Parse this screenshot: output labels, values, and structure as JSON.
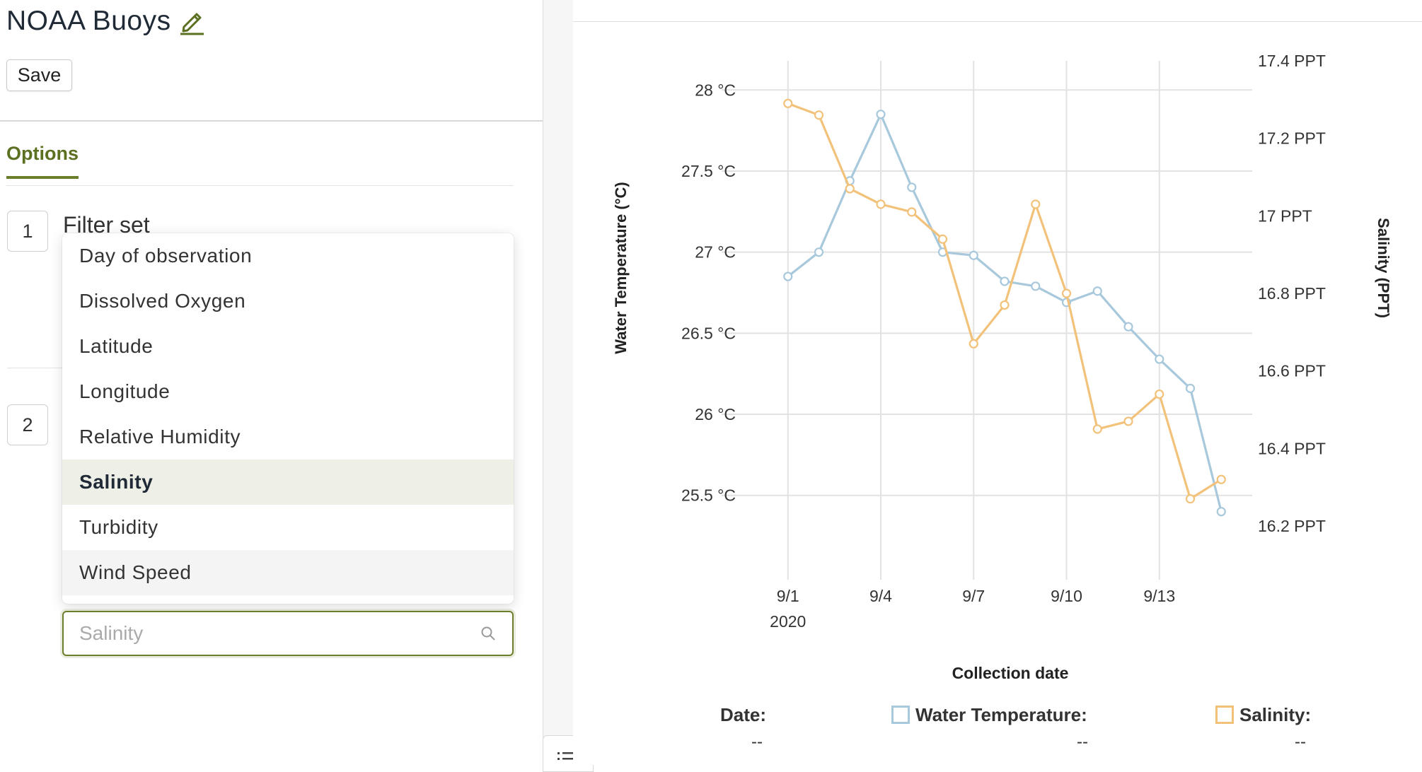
{
  "editor": {
    "title": "NOAA Buoys",
    "save_label": "Save",
    "tab_options_label": "Options",
    "steps": [
      {
        "number": "1",
        "title": "Filter set"
      },
      {
        "number": "2"
      }
    ],
    "dropdown_options": [
      "Day of observation",
      "Dissolved Oxygen",
      "Latitude",
      "Longitude",
      "Relative Humidity",
      "Salinity",
      "Turbidity",
      "Wind Speed"
    ],
    "selected_option": "Salinity",
    "hovered_option": "Wind Speed",
    "search_placeholder": "Salinity"
  },
  "colors": {
    "accent": "#6b7f2a",
    "water_temperature": "#a8c8dc",
    "salinity": "#f3c27a"
  },
  "chart_data": {
    "type": "line",
    "xlabel": "Collection date",
    "y_left_label": "Water Temperature (°C)",
    "y_right_label": "Salinity (PPT)",
    "x_ticks": [
      "9/1",
      "9/4",
      "9/7",
      "9/10",
      "9/13"
    ],
    "x_year_label": "2020",
    "x_domain": [
      "2020-08-31",
      "2020-09-16"
    ],
    "y_left_ticks": [
      "28 °C",
      "27.5 °C",
      "27 °C",
      "26.5 °C",
      "26 °C",
      "25.5 °C"
    ],
    "y_right_ticks": [
      "17.4 PPT",
      "17.2 PPT",
      "17 PPT",
      "16.8 PPT",
      "16.6 PPT",
      "16.4 PPT",
      "16.2 PPT"
    ],
    "y_left_range": [
      24.98,
      28.18
    ],
    "y_right_range": [
      16.2,
      17.4
    ],
    "grid": true,
    "series": [
      {
        "name": "Water Temperature",
        "axis": "left",
        "x": [
          "2020-09-01",
          "2020-09-02",
          "2020-09-03",
          "2020-09-04",
          "2020-09-05",
          "2020-09-06",
          "2020-09-07",
          "2020-09-08",
          "2020-09-09",
          "2020-09-10",
          "2020-09-11",
          "2020-09-12",
          "2020-09-13",
          "2020-09-14",
          "2020-09-15"
        ],
        "values": [
          26.85,
          27.0,
          27.44,
          27.85,
          27.4,
          27.0,
          26.98,
          26.82,
          26.79,
          26.69,
          26.76,
          26.54,
          26.34,
          26.16,
          25.4
        ]
      },
      {
        "name": "Salinity",
        "axis": "right",
        "x": [
          "2020-09-01",
          "2020-09-02",
          "2020-09-03",
          "2020-09-04",
          "2020-09-05",
          "2020-09-06",
          "2020-09-07",
          "2020-09-08",
          "2020-09-09",
          "2020-09-10",
          "2020-09-11",
          "2020-09-12",
          "2020-09-13",
          "2020-09-14",
          "2020-09-15"
        ],
        "values": [
          17.29,
          17.26,
          17.07,
          17.03,
          17.01,
          16.94,
          16.67,
          16.77,
          17.03,
          16.8,
          16.45,
          16.47,
          16.54,
          16.27,
          16.32
        ]
      }
    ],
    "readout": {
      "date_label": "Date:",
      "water_label": "Water Temperature:",
      "salinity_label": "Salinity:",
      "date_value": "--",
      "water_value": "--",
      "salinity_value": "--"
    }
  }
}
